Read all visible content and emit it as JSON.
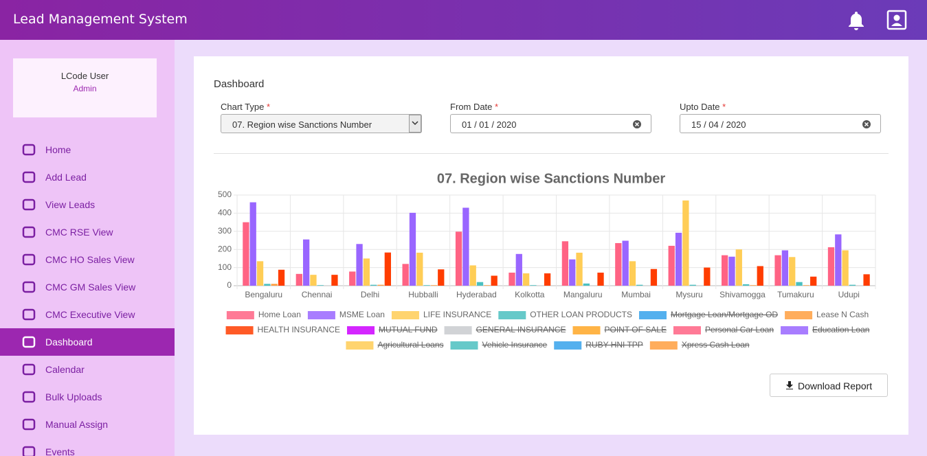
{
  "header": {
    "title": "Lead Management System"
  },
  "user": {
    "name": "LCode User",
    "role": "Admin"
  },
  "nav": [
    "Home",
    "Add Lead",
    "View Leads",
    "CMC RSE View",
    "CMC HO Sales View",
    "CMC GM Sales View",
    "CMC Executive View",
    "Dashboard",
    "Calendar",
    "Bulk Uploads",
    "Manual Assign",
    "Events"
  ],
  "dashboard": {
    "heading": "Dashboard",
    "fields": [
      {
        "label": "Chart Type",
        "required": "*",
        "value": "07. Region wise Sanctions Number"
      },
      {
        "label": "From Date",
        "required": "*",
        "value": "01 / 01 / 2020"
      },
      {
        "label": "Upto Date",
        "required": "*",
        "value": "15 / 04 / 2020"
      }
    ],
    "download": "Download Report"
  },
  "chart_data": {
    "type": "bar",
    "title": "07. Region wise Sanctions Number",
    "categories": [
      "Bengaluru",
      "Chennai",
      "Delhi",
      "Hubballi",
      "Hyderabad",
      "Kolkotta",
      "Mangaluru",
      "Mumbai",
      "Mysuru",
      "Shivamogga",
      "Tumakuru",
      "Udupi"
    ],
    "ylim": [
      0,
      500
    ],
    "yticks": [
      0,
      100,
      200,
      300,
      400,
      500
    ],
    "grid": true,
    "series": [
      {
        "name": "Home Loan",
        "color": "#ff6384",
        "values": [
          350,
          65,
          78,
          120,
          298,
          72,
          245,
          235,
          220,
          168,
          168,
          212
        ]
      },
      {
        "name": "MSME Loan",
        "color": "#9966ff",
        "values": [
          460,
          255,
          230,
          402,
          430,
          175,
          145,
          248,
          292,
          160,
          195,
          283
        ]
      },
      {
        "name": "LIFE INSURANCE",
        "color": "#ffcd56",
        "values": [
          135,
          60,
          150,
          182,
          112,
          68,
          182,
          135,
          470,
          200,
          158,
          195
        ]
      },
      {
        "name": "OTHER LOAN PRODUCTS",
        "color": "#4bc0c0",
        "values": [
          10,
          3,
          5,
          3,
          20,
          3,
          12,
          5,
          5,
          8,
          20,
          5
        ]
      },
      {
        "name": "Mortgage Loan/Mortgage OD",
        "color": "#36a2eb",
        "hidden": true
      },
      {
        "name": "Lease N Cash",
        "color": "#ff9f40",
        "values": [
          10,
          0,
          5,
          3,
          3,
          0,
          0,
          0,
          0,
          3,
          3,
          0
        ]
      },
      {
        "name": "HEALTH INSURANCE",
        "color": "#ff3d00",
        "values": [
          88,
          60,
          183,
          90,
          55,
          68,
          72,
          92,
          100,
          108,
          50,
          63
        ]
      },
      {
        "name": "MUTUAL FUND",
        "color": "#cc00ff",
        "hidden": true
      },
      {
        "name": "GENERAL INSURANCE",
        "color": "#c9cbcf",
        "hidden": true
      },
      {
        "name": "POINT OF SALE",
        "color": "#ffa726",
        "hidden": true
      },
      {
        "name": "Personal Car Loan",
        "color": "#ff6384",
        "hidden": true
      },
      {
        "name": "Education Loan",
        "color": "#9966ff",
        "hidden": true
      },
      {
        "name": "Agricultural Loans",
        "color": "#ffcd56",
        "hidden": true
      },
      {
        "name": "Vehicle Insurance",
        "color": "#4bc0c0",
        "hidden": true
      },
      {
        "name": "RUBY HNI  TPP",
        "color": "#36a2eb",
        "hidden": true
      },
      {
        "name": "Xpress Cash Loan",
        "color": "#ff9f40",
        "hidden": true
      }
    ]
  }
}
